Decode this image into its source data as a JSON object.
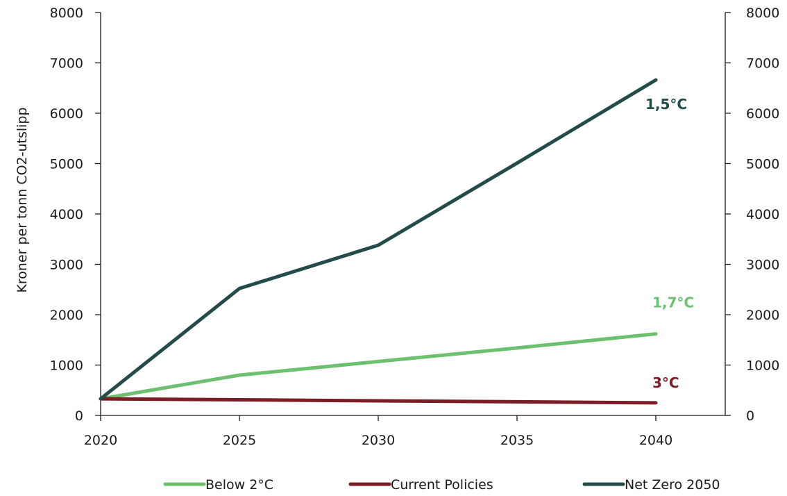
{
  "chart_data": {
    "type": "line",
    "ylabel": "Kroner per tonn CO2-utslipp",
    "xlim": [
      2020,
      2042.5
    ],
    "ylim": [
      0,
      8000
    ],
    "x_ticks": [
      2020,
      2025,
      2030,
      2035,
      2040
    ],
    "y_ticks": [
      0,
      1000,
      2000,
      3000,
      4000,
      5000,
      6000,
      7000,
      8000
    ],
    "secondary_y_axis": true,
    "grid": false,
    "legend_position": "bottom",
    "series": [
      {
        "name": "Below 2°C",
        "color": "#6cc070",
        "x": [
          2020,
          2025,
          2030,
          2035,
          2040
        ],
        "values": [
          330,
          800,
          1070,
          1340,
          1620
        ],
        "end_label": "1,7°C"
      },
      {
        "name": "Current Policies",
        "color": "#7b1d24",
        "x": [
          2020,
          2025,
          2030,
          2035,
          2040
        ],
        "values": [
          330,
          310,
          290,
          270,
          250
        ],
        "end_label": "3°C"
      },
      {
        "name": "Net Zero 2050",
        "color": "#234b4a",
        "x": [
          2020,
          2025,
          2030,
          2035,
          2040
        ],
        "values": [
          330,
          2520,
          3380,
          5010,
          6660
        ],
        "end_label": "1,5°C"
      }
    ]
  }
}
